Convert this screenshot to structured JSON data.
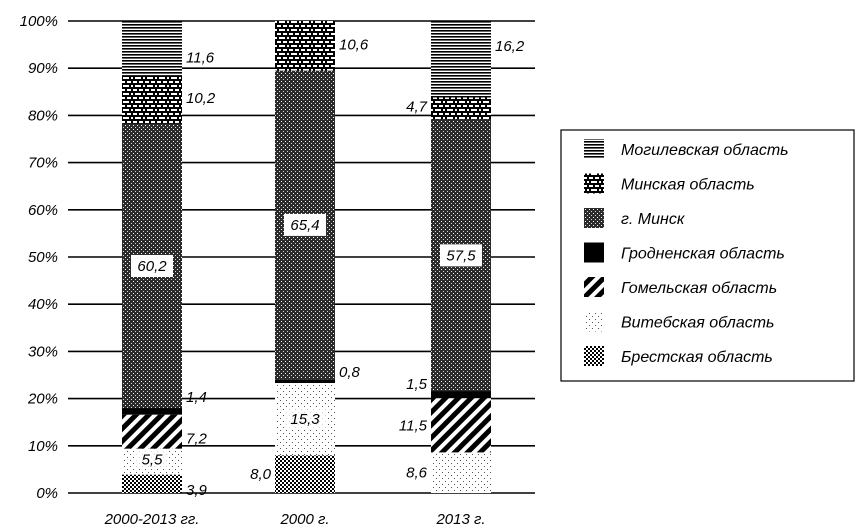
{
  "chart_data": {
    "type": "bar",
    "stacked": true,
    "percent": true,
    "title": "",
    "xlabel": "",
    "ylabel": "",
    "ylim": [
      0,
      100
    ],
    "y_ticks": [
      "0%",
      "10%",
      "20%",
      "30%",
      "40%",
      "50%",
      "60%",
      "70%",
      "80%",
      "90%",
      "100%"
    ],
    "grid": true,
    "legend_position": "right",
    "categories": [
      "2000-2013 гг.",
      "2000 г.",
      "2013 г."
    ],
    "series": [
      {
        "name": "Брестская область",
        "pattern": "checker",
        "values": [
          3.9,
          8.0,
          0
        ]
      },
      {
        "name": "Витебская область",
        "pattern": "sparse-dots",
        "values": [
          5.5,
          15.3,
          8.6
        ]
      },
      {
        "name": "Гомельская область",
        "pattern": "diagonal",
        "values": [
          7.2,
          0,
          11.5
        ]
      },
      {
        "name": "Гродненская область",
        "pattern": "solid",
        "values": [
          1.4,
          0.8,
          1.5
        ]
      },
      {
        "name": "г. Минск",
        "pattern": "dense-dots",
        "values": [
          60.2,
          65.4,
          57.5
        ]
      },
      {
        "name": "Минская область",
        "pattern": "brick",
        "values": [
          10.2,
          10.6,
          4.7
        ]
      },
      {
        "name": "Могилевская область",
        "pattern": "hlines",
        "values": [
          11.6,
          0,
          16.2
        ]
      }
    ],
    "data_labels": [
      [
        "3,9",
        "5,5",
        "7,2",
        "1,4",
        "60,2",
        "10,2",
        "11,6"
      ],
      [
        "8,0",
        "15,3",
        "",
        "0,8",
        "65,4",
        "10,6",
        ""
      ],
      [
        "",
        "8,6",
        "11,5",
        "1,5",
        "57,5",
        "4,7",
        "16,2"
      ]
    ],
    "legend_order": [
      6,
      5,
      4,
      3,
      2,
      1,
      0
    ]
  }
}
